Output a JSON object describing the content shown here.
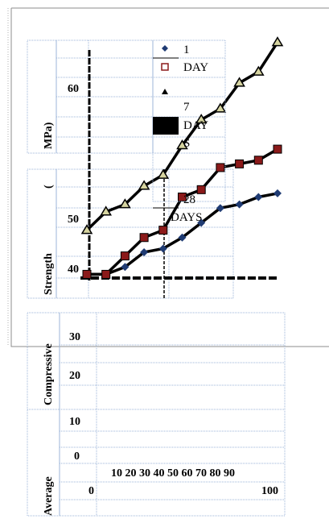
{
  "chart_data": {
    "type": "line",
    "ylabel_words": [
      "Average",
      "Compressive",
      "Strength",
      "(",
      "MPa)"
    ],
    "y_tick_labels": [
      "60",
      "50",
      "40",
      "30",
      "20",
      "10",
      "0"
    ],
    "x_tick_labels_row": "10 20 30 40 50 60 70 80 90",
    "x_tick_label_zero": "0",
    "x_tick_label_end": "100",
    "legend_texts": [
      "1",
      "DAY",
      "7",
      "DAY",
      "S",
      "28",
      "DAYS"
    ],
    "legend_texts_note_excluded": true,
    "x": [
      0,
      10,
      20,
      30,
      40,
      50,
      60,
      70,
      80,
      90,
      100
    ],
    "ylim": [
      38,
      67
    ],
    "xlim": [
      0,
      100
    ],
    "series": [
      {
        "name": "1 DAY",
        "marker": "diamond",
        "color": "#1f3b73",
        "values": [
          38.5,
          38.5,
          39.5,
          41.5,
          42.0,
          43.5,
          45.5,
          47.5,
          48.0,
          49.0,
          49.5
        ]
      },
      {
        "name": "7 DAYS",
        "marker": "square",
        "color": "#8b1a1a",
        "values": [
          38.5,
          38.5,
          41.0,
          43.5,
          44.5,
          49.0,
          50.0,
          53.0,
          53.5,
          54.0,
          55.5
        ]
      },
      {
        "name": "28 DAYS",
        "marker": "triangle",
        "color": "#000000",
        "values": [
          44.5,
          47.0,
          48.0,
          50.5,
          52.0,
          56.0,
          59.5,
          61.0,
          64.5,
          66.0,
          70.0
        ]
      }
    ]
  }
}
